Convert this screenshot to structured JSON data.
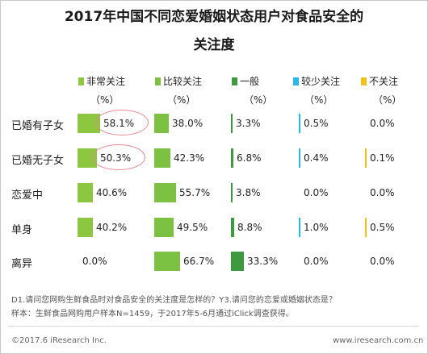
{
  "title_line1": "2017年中国不同恋爱婚姻状态用户对食品安全的",
  "title_line2": "关注度",
  "legend_unit": "（%）",
  "chart_data": {
    "type": "bar",
    "title": "2017年中国不同恋爱婚姻状态用户对食品安全的关注度",
    "categories": [
      "已婚有子女",
      "已婚无子女",
      "恋爱中",
      "单身",
      "离异"
    ],
    "series": [
      {
        "name": "非常关注",
        "color": "#8dc63f",
        "values": [
          58.1,
          50.3,
          40.6,
          40.2,
          0.0
        ],
        "labels": [
          "58.1%",
          "50.3%",
          "40.6%",
          "40.2%",
          "0.0%"
        ]
      },
      {
        "name": "比较关注",
        "color": "#7cc142",
        "values": [
          38.0,
          42.3,
          55.7,
          49.5,
          66.7
        ],
        "labels": [
          "38.0%",
          "42.3%",
          "55.7%",
          "49.5%",
          "66.7%"
        ]
      },
      {
        "name": "一般",
        "color": "#3f9a3f",
        "values": [
          3.3,
          6.8,
          3.8,
          8.8,
          33.3
        ],
        "labels": [
          "3.3%",
          "6.8%",
          "3.8%",
          "8.8%",
          "33.3%"
        ]
      },
      {
        "name": "较少关注",
        "color": "#29b6e8",
        "values": [
          0.5,
          0.4,
          0.0,
          1.0,
          0.0
        ],
        "labels": [
          "0.5%",
          "0.4%",
          "0.0%",
          "1.0%",
          "0.0%"
        ]
      },
      {
        "name": "不关注",
        "color": "#f2c21b",
        "values": [
          0.0,
          0.1,
          0.0,
          0.5,
          0.0
        ],
        "labels": [
          "0.0%",
          "0.1%",
          "0.0%",
          "0.5%",
          "0.0%"
        ]
      }
    ],
    "highlighted": [
      "58.1%",
      "50.3%"
    ]
  },
  "notes": {
    "line1": "D1.请问您网购生鲜食品时对食品安全的关注度是怎样的？Y3.请问您的恋爱或婚姻状态是？",
    "line2": "样本：生鲜食品网购用户样本N=1459，于2017年5-6月通过iClick调查获得。"
  },
  "footer": {
    "left": "©2017.6 iResearch Inc.",
    "right": "www.iresearch.com.cn"
  }
}
